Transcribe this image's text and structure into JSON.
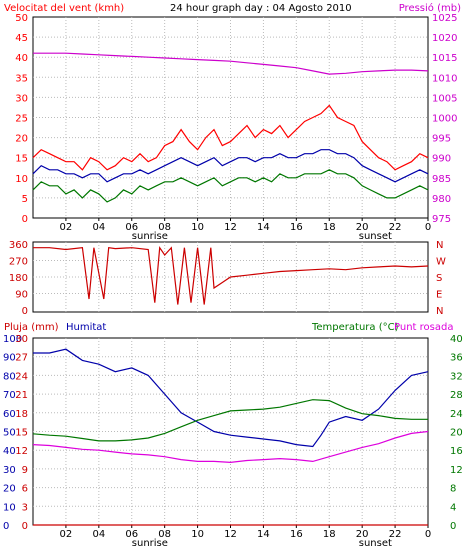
{
  "chart_data": [
    {
      "type": "line",
      "title": "24 hour graph day : 04 Agosto 2010",
      "ylabel_left": "Velocitat del vent (kmh)",
      "ylabel_right": "Pressió (mb)",
      "left_ylim": [
        0,
        50
      ],
      "left_ticks": [
        "0",
        "5",
        "10",
        "15",
        "20",
        "25",
        "30",
        "35",
        "40",
        "45",
        "50"
      ],
      "right_ylim": [
        975,
        1025
      ],
      "right_ticks": [
        "975",
        "980",
        "985",
        "990",
        "995",
        "1000",
        "1005",
        "1010",
        "1015",
        "1020",
        "1025"
      ],
      "x_ticks": [
        "02",
        "04",
        "06",
        "08",
        "10",
        "12",
        "14",
        "16",
        "18",
        "20",
        "22",
        "0"
      ],
      "annotations": [
        "sunrise",
        "sunset"
      ],
      "sunrise_hour": 7.1,
      "sunset_hour": 20.8,
      "grid": true,
      "series": [
        {
          "color": "#ff0000",
          "axis": "left",
          "x": [
            0,
            0.5,
            1,
            1.5,
            2,
            2.5,
            3,
            3.5,
            4,
            4.5,
            5,
            5.5,
            6,
            6.5,
            7,
            7.5,
            8,
            8.5,
            9,
            9.5,
            10,
            10.5,
            11,
            11.5,
            12,
            12.5,
            13,
            13.5,
            14,
            14.5,
            15,
            15.5,
            16,
            16.5,
            17,
            17.5,
            18,
            18.5,
            19,
            19.5,
            20,
            20.5,
            21,
            21.5,
            22,
            22.5,
            23,
            23.5,
            24
          ],
          "values": [
            15,
            17,
            16,
            15,
            14,
            14,
            12,
            15,
            14,
            12,
            13,
            15,
            14,
            16,
            14,
            15,
            18,
            19,
            22,
            19,
            17,
            20,
            22,
            18,
            19,
            21,
            23,
            20,
            22,
            21,
            23,
            20,
            22,
            24,
            25,
            26,
            28,
            25,
            24,
            23,
            19,
            17,
            15,
            14,
            12,
            13,
            14,
            16,
            15
          ]
        },
        {
          "color": "#0000aa",
          "axis": "left",
          "x": [
            0,
            0.5,
            1,
            1.5,
            2,
            2.5,
            3,
            3.5,
            4,
            4.5,
            5,
            5.5,
            6,
            6.5,
            7,
            7.5,
            8,
            8.5,
            9,
            9.5,
            10,
            10.5,
            11,
            11.5,
            12,
            12.5,
            13,
            13.5,
            14,
            14.5,
            15,
            15.5,
            16,
            16.5,
            17,
            17.5,
            18,
            18.5,
            19,
            19.5,
            20,
            20.5,
            21,
            21.5,
            22,
            22.5,
            23,
            23.5,
            24
          ],
          "values": [
            11,
            13,
            12,
            12,
            11,
            11,
            10,
            11,
            11,
            9,
            10,
            11,
            11,
            12,
            11,
            12,
            13,
            14,
            15,
            14,
            13,
            14,
            15,
            13,
            14,
            15,
            15,
            14,
            15,
            15,
            16,
            15,
            15,
            16,
            16,
            17,
            17,
            16,
            16,
            15,
            13,
            12,
            11,
            10,
            9,
            10,
            11,
            12,
            11
          ]
        },
        {
          "color": "#007700",
          "axis": "left",
          "x": [
            0,
            0.5,
            1,
            1.5,
            2,
            2.5,
            3,
            3.5,
            4,
            4.5,
            5,
            5.5,
            6,
            6.5,
            7,
            7.5,
            8,
            8.5,
            9,
            9.5,
            10,
            10.5,
            11,
            11.5,
            12,
            12.5,
            13,
            13.5,
            14,
            14.5,
            15,
            15.5,
            16,
            16.5,
            17,
            17.5,
            18,
            18.5,
            19,
            19.5,
            20,
            20.5,
            21,
            21.5,
            22,
            22.5,
            23,
            23.5,
            24
          ],
          "values": [
            7,
            9,
            8,
            8,
            6,
            7,
            5,
            7,
            6,
            4,
            5,
            7,
            6,
            8,
            7,
            8,
            9,
            9,
            10,
            9,
            8,
            9,
            10,
            8,
            9,
            10,
            10,
            9,
            10,
            9,
            11,
            10,
            10,
            11,
            11,
            11,
            12,
            11,
            11,
            10,
            8,
            7,
            6,
            5,
            5,
            6,
            7,
            8,
            7
          ]
        },
        {
          "color": "#cc00cc",
          "axis": "right",
          "x": [
            0,
            1,
            2,
            3,
            4,
            5,
            6,
            7,
            8,
            9,
            10,
            11,
            12,
            13,
            14,
            15,
            16,
            17,
            18,
            19,
            20,
            21,
            22,
            23,
            24
          ],
          "values": [
            1016,
            1016,
            1016,
            1015.8,
            1015.6,
            1015.4,
            1015.2,
            1015,
            1014.8,
            1014.6,
            1014.4,
            1014.2,
            1014,
            1013.6,
            1013.2,
            1012.8,
            1012.4,
            1011.6,
            1010.8,
            1011,
            1011.4,
            1011.6,
            1011.8,
            1011.8,
            1011.6
          ]
        }
      ]
    },
    {
      "type": "line",
      "ylim": [
        0,
        360
      ],
      "left_ticks": [
        "0",
        "90",
        "180",
        "270",
        "360"
      ],
      "right_labels": [
        "N",
        "W",
        "S",
        "E",
        "N"
      ],
      "series": [
        {
          "color": "#cc0000",
          "x": [
            0,
            1,
            2,
            3,
            3.4,
            3.7,
            4.3,
            4.6,
            5,
            6,
            7,
            7.4,
            7.7,
            8,
            8.4,
            8.8,
            9.2,
            9.6,
            10,
            10.4,
            10.8,
            11,
            11.5,
            12,
            13,
            14,
            15,
            16,
            17,
            18,
            19,
            20,
            21,
            22,
            23,
            24
          ],
          "values": [
            340,
            340,
            330,
            340,
            60,
            340,
            60,
            340,
            335,
            340,
            330,
            40,
            340,
            300,
            340,
            30,
            340,
            40,
            340,
            30,
            340,
            120,
            150,
            180,
            190,
            200,
            210,
            215,
            220,
            225,
            220,
            230,
            235,
            240,
            235,
            240
          ]
        }
      ]
    },
    {
      "type": "line",
      "ylabel_left": "Pluja (mm)",
      "ylabel_left2": "Humitat",
      "ylabel_right": "Temperatura (°C)",
      "ylabel_right2": "Punt rosada",
      "humidity_ylim": [
        0,
        100
      ],
      "humidity_ticks": [
        "0",
        "10",
        "20",
        "30",
        "40",
        "50",
        "60",
        "70",
        "80",
        "90",
        "100"
      ],
      "rain_ylim": [
        0,
        30
      ],
      "rain_ticks": [
        "0",
        "3",
        "6",
        "9",
        "12",
        "15",
        "18",
        "21",
        "24",
        "27",
        "30"
      ],
      "temp_ylim": [
        0,
        40
      ],
      "temp_ticks": [
        "0",
        "4",
        "8",
        "12",
        "16",
        "20",
        "24",
        "28",
        "32",
        "36",
        "40"
      ],
      "x_ticks": [
        "02",
        "04",
        "06",
        "08",
        "10",
        "12",
        "14",
        "16",
        "18",
        "20",
        "22",
        "0"
      ],
      "annotations": [
        "sunrise",
        "sunset"
      ],
      "series": [
        {
          "name": "Humitat",
          "color": "#0000aa",
          "axis": "humidity",
          "x": [
            0,
            1,
            2,
            3,
            4,
            5,
            6,
            7,
            8,
            9,
            10,
            11,
            12,
            13,
            14,
            15,
            16,
            17,
            17.5,
            18,
            19,
            20,
            21,
            22,
            23,
            24
          ],
          "values": [
            92,
            92,
            94,
            88,
            86,
            82,
            84,
            80,
            70,
            60,
            55,
            50,
            48,
            47,
            46,
            45,
            43,
            42,
            48,
            55,
            58,
            56,
            62,
            72,
            80,
            82
          ]
        },
        {
          "name": "Temperatura (°C)",
          "color": "#007700",
          "axis": "temp",
          "x": [
            0,
            1,
            2,
            3,
            4,
            5,
            6,
            7,
            8,
            9,
            10,
            11,
            12,
            13,
            14,
            15,
            16,
            17,
            18,
            19,
            20,
            21,
            22,
            23,
            24
          ],
          "values": [
            19.5,
            19.2,
            19,
            18.5,
            18,
            18,
            18.2,
            18.6,
            19.6,
            21,
            22.4,
            23.4,
            24.4,
            24.6,
            24.8,
            25.2,
            26,
            26.8,
            26.6,
            25,
            23.8,
            23.4,
            22.8,
            22.6,
            22.6
          ]
        },
        {
          "name": "Punt rosada",
          "color": "#dd00dd",
          "axis": "temp",
          "x": [
            0,
            1,
            2,
            3,
            4,
            5,
            6,
            7,
            8,
            9,
            10,
            11,
            12,
            13,
            14,
            15,
            16,
            17,
            18,
            19,
            20,
            21,
            22,
            23,
            24
          ],
          "values": [
            17.2,
            17,
            16.6,
            16.2,
            16,
            15.6,
            15.2,
            15,
            14.6,
            14,
            13.6,
            13.6,
            13.4,
            13.8,
            14,
            14.2,
            14,
            13.6,
            14.6,
            15.6,
            16.6,
            17.4,
            18.6,
            19.6,
            20
          ]
        },
        {
          "name": "Pluja (mm)",
          "color": "#cc0000",
          "axis": "rain",
          "x": [
            0,
            24
          ],
          "values": [
            0,
            0
          ]
        }
      ]
    }
  ]
}
